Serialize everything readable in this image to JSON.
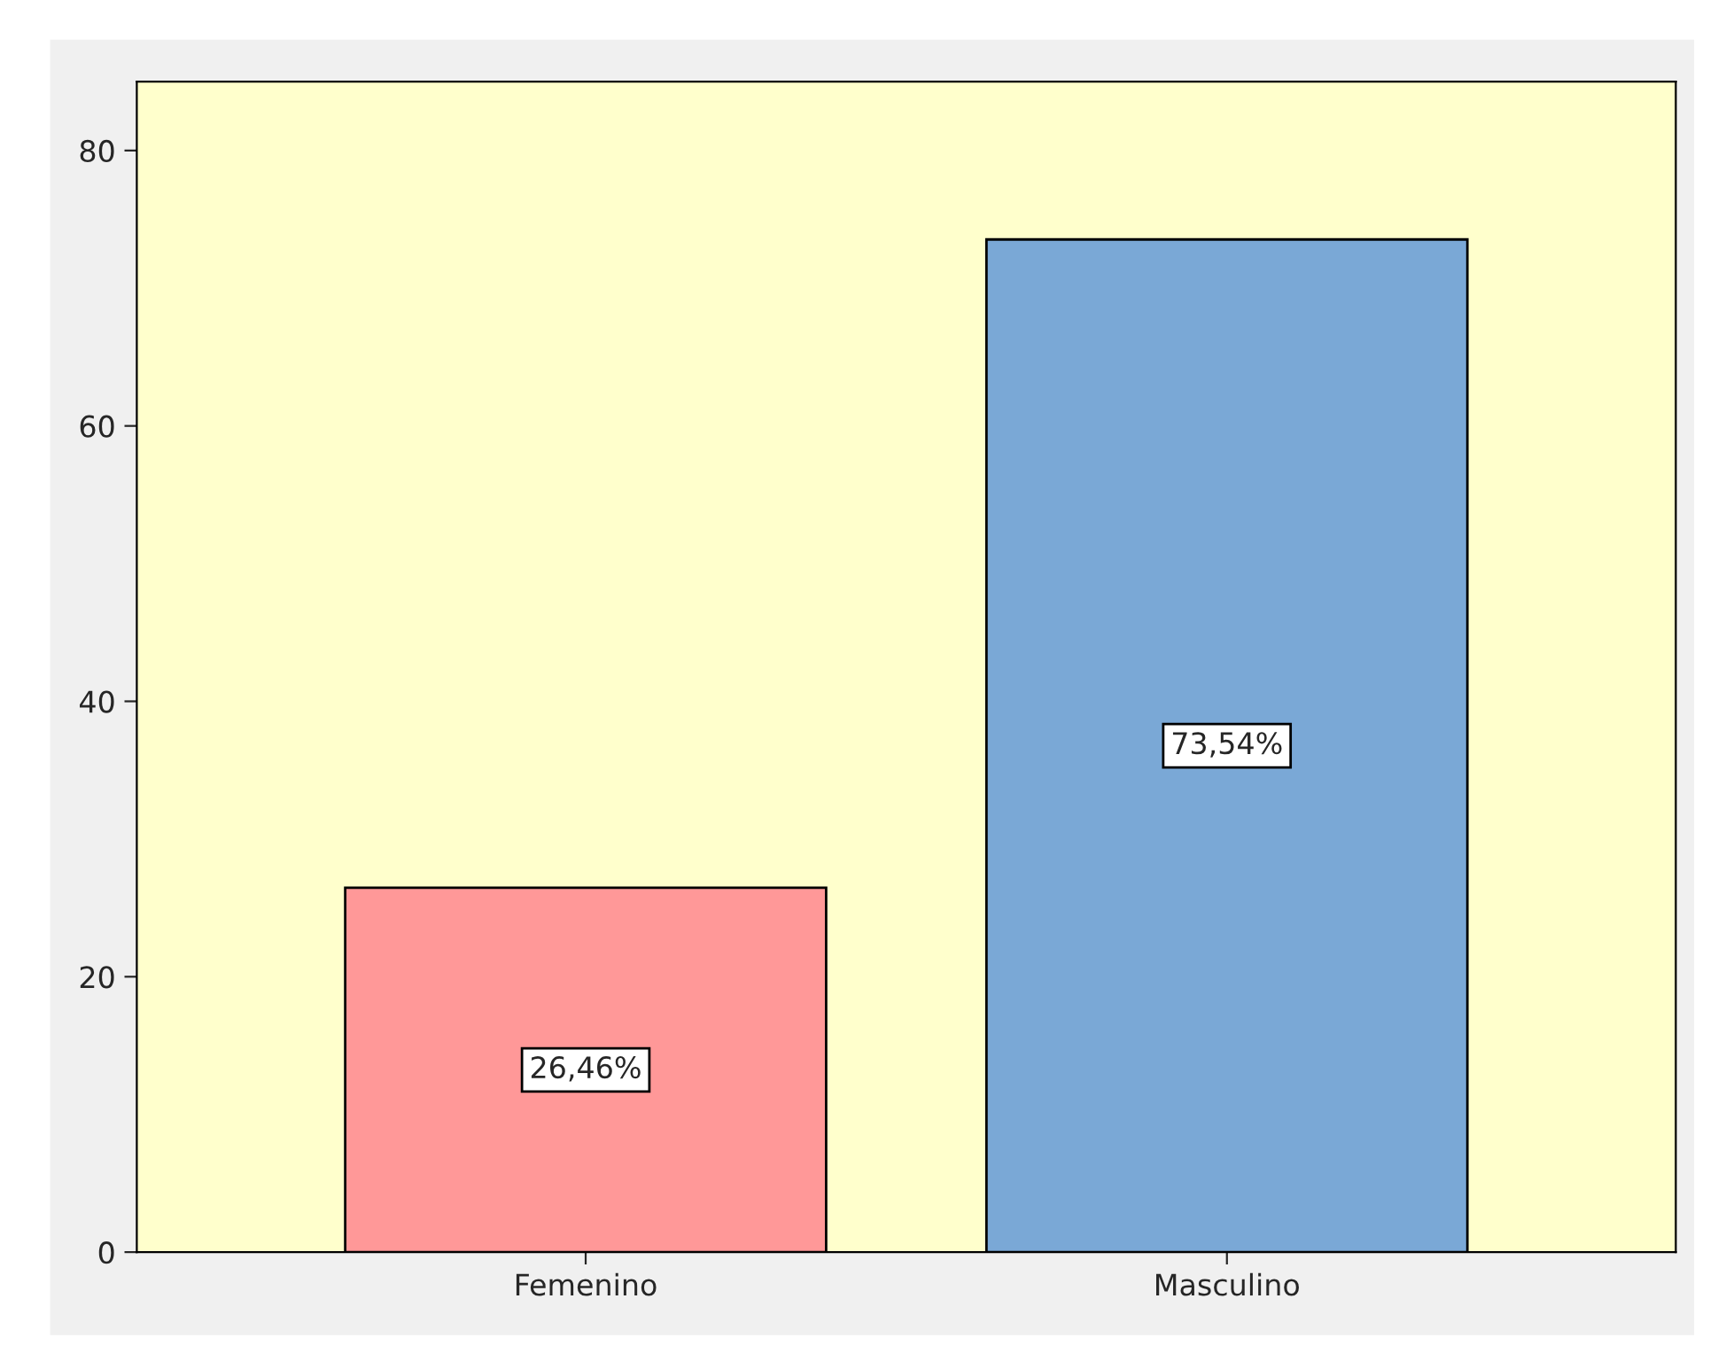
{
  "chart_data": {
    "type": "bar",
    "categories": [
      "Femenino",
      "Masculino"
    ],
    "values": [
      26.46,
      73.54
    ],
    "colors": [
      "#ff9898",
      "#7aa8d6"
    ],
    "value_labels": [
      "26,46%",
      "73,54%"
    ],
    "ylim": [
      0,
      85
    ],
    "yticks": [
      0,
      20,
      40,
      60,
      80
    ],
    "grid": false,
    "legend": false
  }
}
